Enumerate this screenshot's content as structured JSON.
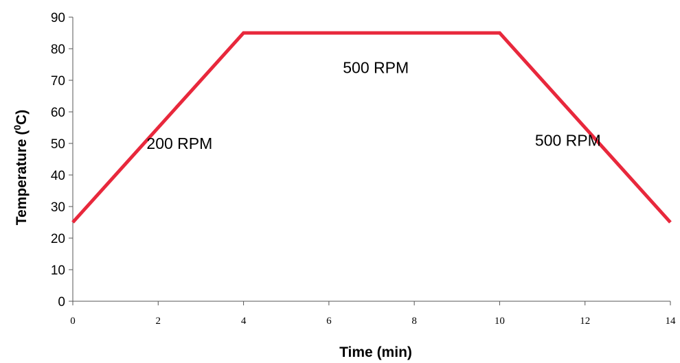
{
  "chart_data": {
    "type": "line",
    "title": "",
    "xlabel": "Time (min)",
    "ylabel_main": "Temperature (",
    "ylabel_sup": "0",
    "ylabel_tail": "C)",
    "xlim": [
      0,
      14
    ],
    "ylim": [
      0,
      90
    ],
    "xticks": [
      0,
      2,
      4,
      6,
      8,
      10,
      12,
      14
    ],
    "yticks": [
      0,
      10,
      20,
      30,
      40,
      50,
      60,
      70,
      80,
      90
    ],
    "grid": false,
    "series": [
      {
        "color": "#e8283c",
        "x": [
          0,
          4,
          10,
          14
        ],
        "y": [
          25,
          85,
          85,
          25
        ]
      }
    ],
    "annotations": [
      {
        "text": "200 RPM",
        "x": 2.5,
        "y": 50
      },
      {
        "text": "500 RPM",
        "x": 7.1,
        "y": 74
      },
      {
        "text": "500 RPM",
        "x": 11.6,
        "y": 51
      }
    ]
  }
}
